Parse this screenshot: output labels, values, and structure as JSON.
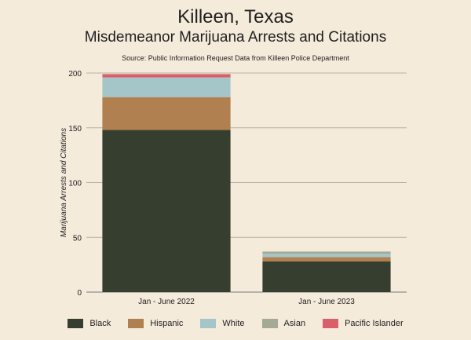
{
  "header": {
    "title": "Killeen, Texas",
    "subtitle": "Misdemeanor Marijuana Arrests and Citations",
    "source": "Source: Public Information Request Data from Killeen Police Department"
  },
  "chart_data": {
    "type": "bar",
    "stacked": true,
    "categories": [
      "Jan - June 2022",
      "Jan - June 2023"
    ],
    "series": [
      {
        "name": "Black",
        "color": "#363f2f",
        "values": [
          148,
          28
        ]
      },
      {
        "name": "Hispanic",
        "color": "#b08050",
        "values": [
          30,
          4
        ]
      },
      {
        "name": "White",
        "color": "#a4c6c8",
        "values": [
          18,
          3
        ]
      },
      {
        "name": "Asian",
        "color": "#a3aa95",
        "values": [
          0,
          2
        ]
      },
      {
        "name": "Pacific Islander",
        "color": "#d95f6a",
        "values": [
          3,
          0
        ]
      }
    ],
    "title": "Killeen, Texas",
    "subtitle": "Misdemeanor Marijuana Arrests and Citations",
    "xlabel": "",
    "ylabel": "Marijuana Arrests and Citations",
    "yticks": [
      0,
      50,
      100,
      150,
      200
    ],
    "ylim": [
      0,
      200
    ],
    "grid": true,
    "legend_position": "bottom"
  }
}
